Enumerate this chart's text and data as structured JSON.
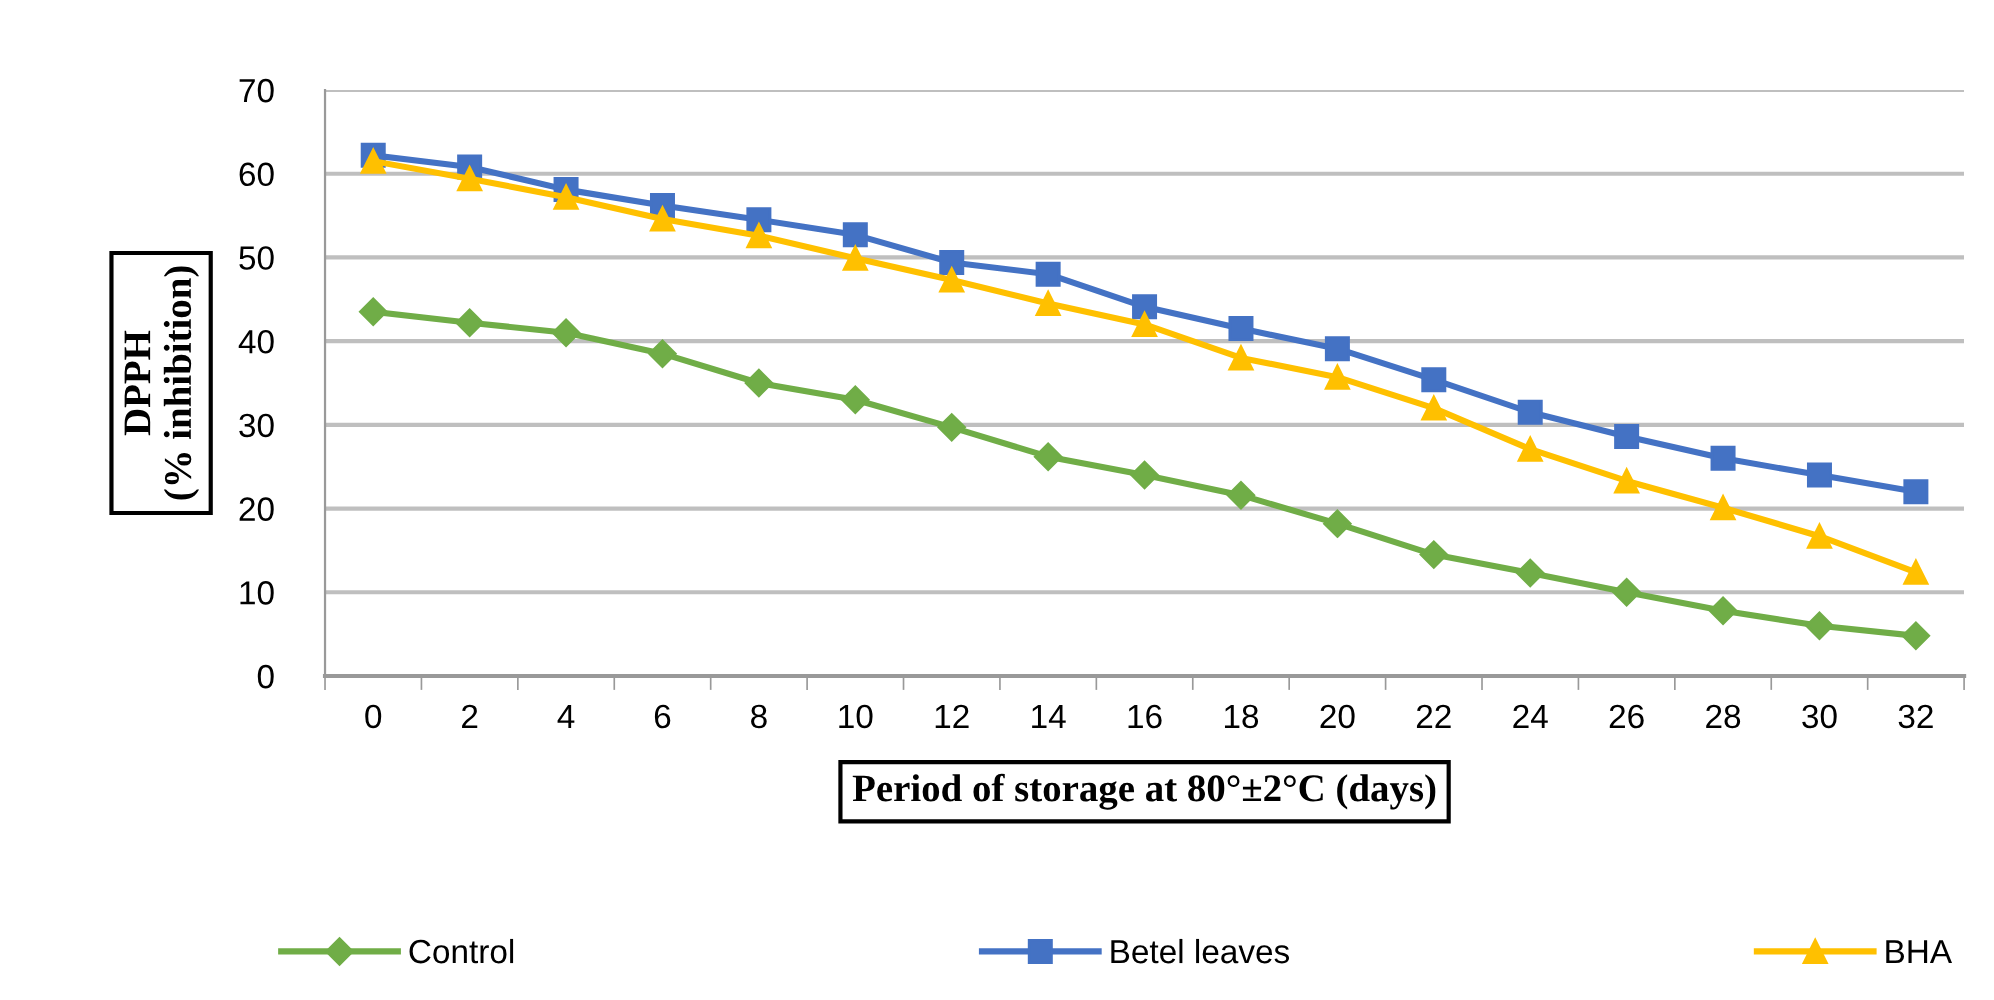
{
  "chart_data": {
    "type": "line",
    "xlabel": "Period of storage at 80°±2°C (days)",
    "ylabel": "DPPH\n(% inhibition)",
    "categories": [
      "0",
      "2",
      "4",
      "6",
      "8",
      "10",
      "12",
      "14",
      "16",
      "18",
      "20",
      "22",
      "24",
      "26",
      "28",
      "30",
      "32"
    ],
    "series": [
      {
        "name": "Control",
        "color": "#70ad47",
        "marker": "diamond",
        "values": [
          43.5,
          42.2,
          41,
          38.5,
          35,
          33,
          29.7,
          26.2,
          24,
          21.6,
          18.2,
          14.5,
          12.3,
          10,
          7.8,
          6,
          4.8
        ]
      },
      {
        "name": "Betel leaves",
        "color": "#4472c4",
        "marker": "square",
        "values": [
          62.2,
          60.8,
          58.1,
          56.2,
          54.5,
          52.7,
          49.4,
          48,
          44.1,
          41.5,
          39.1,
          35.4,
          31.5,
          28.6,
          26,
          24,
          22
        ]
      },
      {
        "name": "BHA",
        "color": "#ffc000",
        "marker": "triangle",
        "values": [
          61.5,
          59.4,
          57.2,
          54.6,
          52.6,
          49.9,
          47.3,
          44.5,
          42,
          38,
          35.7,
          32,
          27.1,
          23.3,
          20.1,
          16.7,
          12.4
        ]
      }
    ],
    "ylim": [
      0,
      70
    ],
    "yticks": [
      0,
      10,
      20,
      30,
      40,
      50,
      60,
      70
    ],
    "grid": "y",
    "legend": "bottom",
    "line_style": "solid"
  }
}
